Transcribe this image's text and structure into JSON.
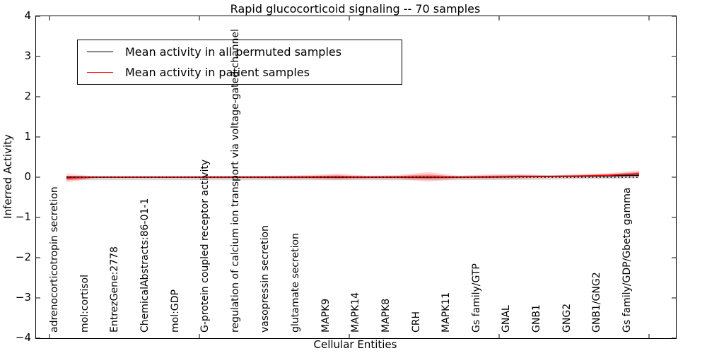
{
  "chart_data": {
    "type": "line",
    "title": "Rapid glucocorticoid signaling -- 70 samples",
    "xlabel": "Cellular Entities",
    "ylabel": "Inferred Activity",
    "ylim": [
      -4,
      4
    ],
    "y_tick_values": [
      4,
      3,
      2,
      1,
      0,
      -1,
      -2,
      -3,
      -4
    ],
    "y_tick_labels": [
      "4",
      "3",
      "2",
      "1",
      "0",
      "−1",
      "−2",
      "−3",
      "−4"
    ],
    "grid": false,
    "legend_position": "upper left",
    "categories": [
      "adrenocorticotropin secretion",
      "mol:cortisol",
      "EntrezGene:2778",
      "ChemicalAbstracts:86-01-1",
      "mol:GDP",
      "G-protein coupled receptor activity",
      "regulation of calcium ion transport via voltage-gated channel",
      "vasopressin secretion",
      "glutamate secretion",
      "MAPK9",
      "MAPK14",
      "MAPK8",
      "CRH",
      "MAPK11",
      "Gs family/GTP",
      "GNAL",
      "GNB1",
      "GNG2",
      "GNB1/GNG2",
      "Gs family/GDP/Gbeta gamma"
    ],
    "series": [
      {
        "name": "Mean activity in all permuted samples",
        "color": "#000000",
        "style": "solid",
        "in_legend": true,
        "values": [
          0,
          0,
          0,
          0,
          0,
          0,
          0,
          0,
          0,
          0,
          0,
          0,
          0,
          0,
          0.005,
          0.01,
          0.015,
          0.025,
          0.035,
          0.05
        ]
      },
      {
        "name": "Mean activity in patient samples",
        "color": "#ff0000",
        "style": "solid",
        "in_legend": true,
        "values": [
          -0.02,
          0,
          0,
          0,
          0,
          0,
          0,
          0,
          0.005,
          0.01,
          0,
          0.005,
          0.01,
          0,
          0.01,
          0.02,
          0.02,
          0.03,
          0.05,
          0.09
        ]
      },
      {
        "name": "zero-reference",
        "color": "#000000",
        "style": "dotted",
        "in_legend": false,
        "values": [
          0,
          0,
          0,
          0,
          0,
          0,
          0,
          0,
          0,
          0,
          0,
          0,
          0,
          0,
          0,
          0,
          0,
          0,
          0,
          0
        ]
      }
    ],
    "bands": [
      {
        "name": "permuted-range",
        "color": "rgba(130,130,130,0.30)",
        "upper": [
          0.035,
          0.035,
          0.035,
          0.035,
          0.035,
          0.035,
          0.035,
          0.035,
          0.035,
          0.035,
          0.035,
          0.035,
          0.035,
          0.035,
          0.04,
          0.045,
          0.05,
          0.06,
          0.07,
          0.085
        ],
        "lower": [
          -0.075,
          -0.075,
          -0.075,
          -0.075,
          -0.075,
          -0.075,
          -0.075,
          -0.075,
          -0.075,
          -0.075,
          -0.075,
          -0.075,
          -0.075,
          -0.075,
          -0.07,
          -0.065,
          -0.06,
          -0.05,
          -0.04,
          -0.025
        ]
      },
      {
        "name": "patient-range-outer",
        "color": "rgba(255,0,0,0.16)",
        "upper": [
          0.09,
          0.02,
          0.02,
          0.02,
          0.02,
          0.03,
          0.03,
          0.04,
          0.055,
          0.09,
          0.04,
          0.055,
          0.13,
          0.04,
          0.07,
          0.08,
          0.05,
          0.07,
          0.1,
          0.17
        ],
        "lower": [
          -0.13,
          -0.02,
          -0.02,
          -0.02,
          -0.02,
          -0.03,
          -0.03,
          -0.04,
          -0.045,
          -0.07,
          -0.04,
          -0.045,
          -0.11,
          -0.04,
          -0.05,
          -0.04,
          -0.01,
          -0.01,
          0.0,
          0.01
        ]
      },
      {
        "name": "patient-range-inner",
        "color": "rgba(255,0,0,0.35)",
        "upper": [
          0.035,
          0.01,
          0.01,
          0.01,
          0.01,
          0.015,
          0.015,
          0.02,
          0.03,
          0.05,
          0.02,
          0.03,
          0.07,
          0.02,
          0.04,
          0.05,
          0.035,
          0.05,
          0.075,
          0.13
        ],
        "lower": [
          -0.075,
          -0.01,
          -0.01,
          -0.01,
          -0.01,
          -0.015,
          -0.015,
          -0.02,
          -0.02,
          -0.03,
          -0.02,
          -0.02,
          -0.05,
          -0.02,
          -0.02,
          0.0,
          0.005,
          0.01,
          0.025,
          0.05
        ]
      }
    ],
    "legend": [
      {
        "label": "Mean activity in all permuted samples",
        "color": "#000000"
      },
      {
        "label": "Mean activity in patient samples",
        "color": "#ff0000"
      }
    ]
  }
}
